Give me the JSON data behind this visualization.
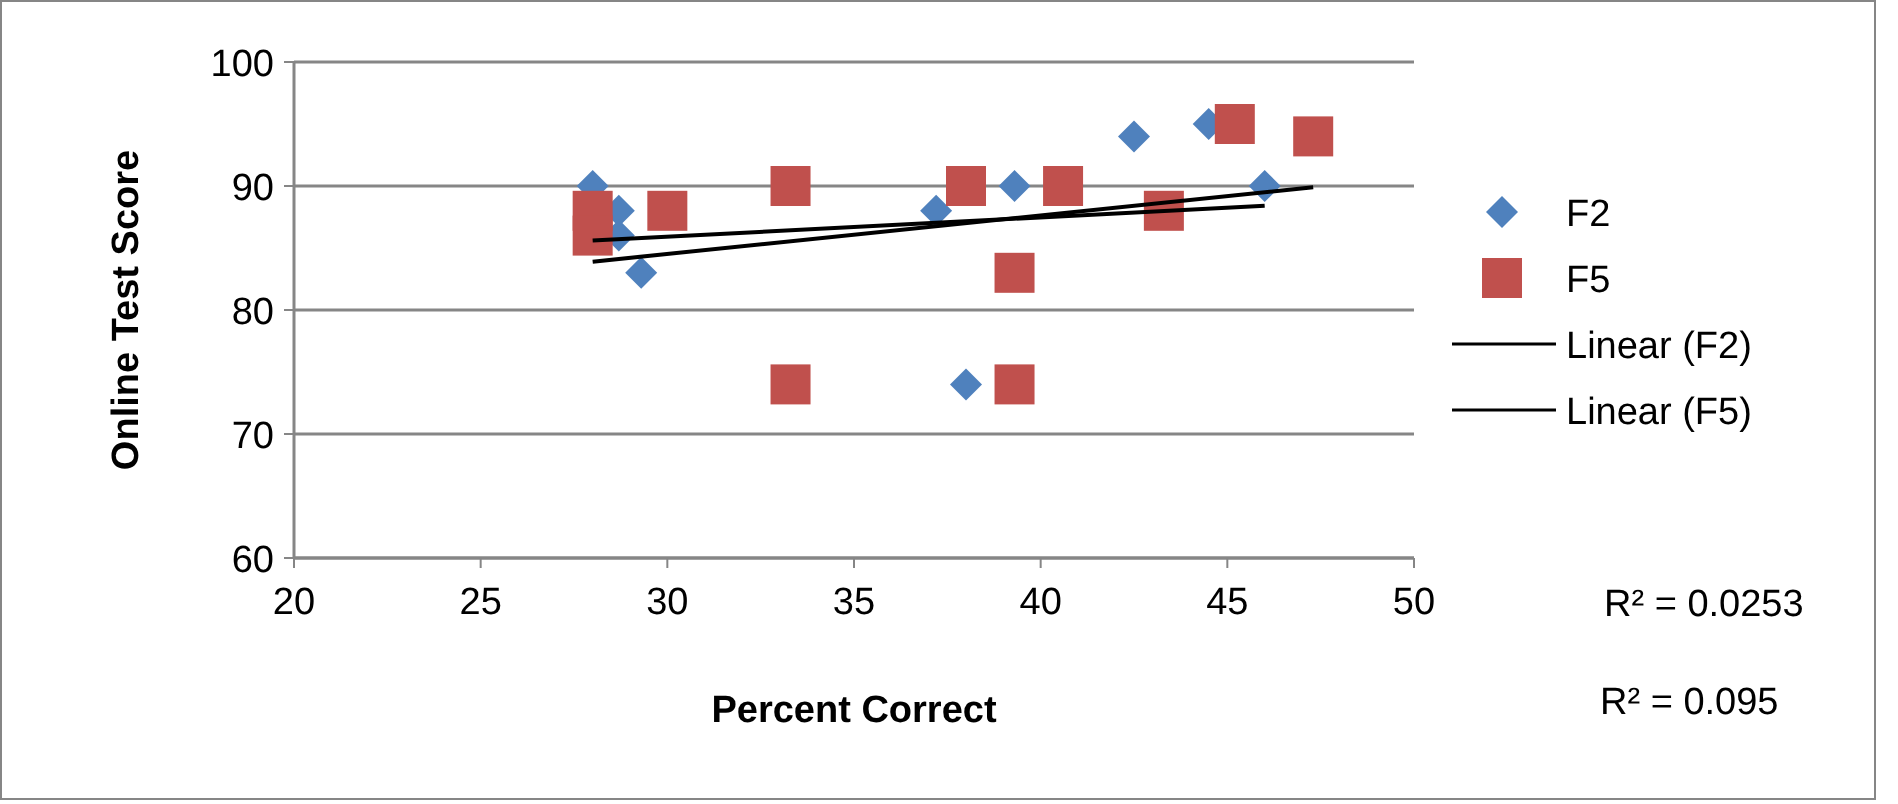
{
  "chart_data": {
    "type": "scatter",
    "xlabel": "Percent Correct",
    "ylabel": "Online Test Score",
    "xlim": [
      20,
      50
    ],
    "xticks": [
      20,
      25,
      30,
      35,
      40,
      45,
      50
    ],
    "ylim": [
      60,
      100
    ],
    "yticks": [
      60,
      70,
      80,
      90,
      100
    ],
    "grid": "y",
    "legend": "right",
    "series": [
      {
        "name": "F2",
        "color": "#4f81bd",
        "marker": "diamond",
        "x": [
          28,
          28.7,
          28.7,
          29.3,
          37.2,
          38,
          39.3,
          42.5,
          44.5,
          46
        ],
        "values": [
          90,
          88,
          86,
          83,
          88,
          74,
          90,
          94,
          95,
          90
        ]
      },
      {
        "name": "F5",
        "color": "#c0504d",
        "marker": "square",
        "x": [
          28,
          28,
          30,
          33.3,
          33.3,
          38,
          39.3,
          39.3,
          40.6,
          43.3,
          45.2,
          47.3
        ],
        "values": [
          88,
          86,
          88,
          90,
          74,
          90,
          83,
          74,
          90,
          88,
          95,
          94
        ]
      },
      {
        "name": "Linear (F2)",
        "type": "line",
        "color": "#000000",
        "marker": "none",
        "line_style": "solid",
        "x": [
          28,
          46
        ],
        "values": [
          85.6,
          88.4
        ]
      },
      {
        "name": "Linear (F5)",
        "type": "line",
        "color": "#000000",
        "marker": "none",
        "line_style": "solid",
        "x": [
          28,
          47.3
        ],
        "values": [
          83.9,
          89.9
        ]
      }
    ],
    "annotations": [
      "R² = 0.0253",
      "R² = 0.095"
    ]
  }
}
